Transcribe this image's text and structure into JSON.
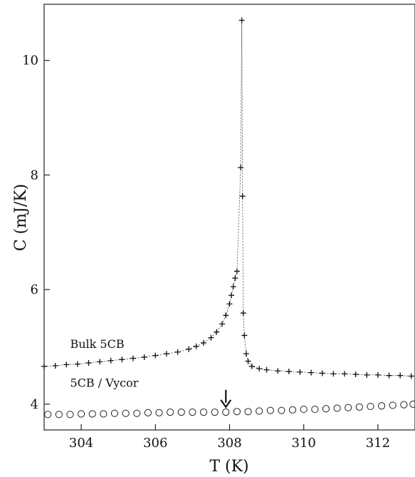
{
  "chart_data": {
    "type": "scatter",
    "xlabel": "T (K)",
    "ylabel": "C (mJ/K)",
    "xlim": [
      303.0,
      313.0
    ],
    "ylim": [
      3.55,
      10.98
    ],
    "x_ticks": [
      304,
      306,
      308,
      310,
      312
    ],
    "y_ticks": [
      4,
      6,
      8,
      10
    ],
    "grid": false,
    "legend": "none",
    "annotations": [
      {
        "text": "Bulk 5CB",
        "x": 303.7,
        "y": 4.98
      },
      {
        "text": "5CB / Vycor",
        "x": 303.7,
        "y": 4.3
      },
      {
        "type": "arrow",
        "x": 307.9,
        "y_from": 4.25,
        "y_to": 3.95
      }
    ],
    "series": [
      {
        "label": "Bulk 5CB",
        "marker": "plus",
        "dashed_guide": true,
        "points": [
          [
            303.0,
            4.66
          ],
          [
            303.3,
            4.67
          ],
          [
            303.6,
            4.69
          ],
          [
            303.9,
            4.7
          ],
          [
            304.2,
            4.72
          ],
          [
            304.5,
            4.74
          ],
          [
            304.8,
            4.76
          ],
          [
            305.1,
            4.78
          ],
          [
            305.4,
            4.8
          ],
          [
            305.7,
            4.82
          ],
          [
            306.0,
            4.85
          ],
          [
            306.3,
            4.88
          ],
          [
            306.6,
            4.91
          ],
          [
            306.9,
            4.96
          ],
          [
            307.1,
            5.01
          ],
          [
            307.3,
            5.07
          ],
          [
            307.5,
            5.16
          ],
          [
            307.65,
            5.26
          ],
          [
            307.8,
            5.4
          ],
          [
            307.9,
            5.55
          ],
          [
            308.0,
            5.75
          ],
          [
            308.05,
            5.9
          ],
          [
            308.1,
            6.05
          ],
          [
            308.15,
            6.2
          ],
          [
            308.2,
            6.32
          ],
          [
            308.3,
            8.13
          ],
          [
            308.33,
            10.7
          ],
          [
            308.35,
            7.63
          ],
          [
            308.37,
            5.59
          ],
          [
            308.4,
            5.2
          ],
          [
            308.45,
            4.88
          ],
          [
            308.5,
            4.75
          ],
          [
            308.6,
            4.66
          ],
          [
            308.8,
            4.62
          ],
          [
            309.0,
            4.6
          ],
          [
            309.3,
            4.58
          ],
          [
            309.6,
            4.57
          ],
          [
            309.9,
            4.56
          ],
          [
            310.2,
            4.55
          ],
          [
            310.5,
            4.54
          ],
          [
            310.8,
            4.53
          ],
          [
            311.1,
            4.53
          ],
          [
            311.4,
            4.52
          ],
          [
            311.7,
            4.51
          ],
          [
            312.0,
            4.51
          ],
          [
            312.3,
            4.5
          ],
          [
            312.6,
            4.5
          ],
          [
            312.9,
            4.49
          ]
        ]
      },
      {
        "label": "5CB / Vycor",
        "marker": "circle",
        "points": [
          [
            303.1,
            3.82
          ],
          [
            303.4,
            3.82
          ],
          [
            303.7,
            3.82
          ],
          [
            304.0,
            3.83
          ],
          [
            304.3,
            3.83
          ],
          [
            304.6,
            3.83
          ],
          [
            304.9,
            3.84
          ],
          [
            305.2,
            3.84
          ],
          [
            305.5,
            3.84
          ],
          [
            305.8,
            3.85
          ],
          [
            306.1,
            3.85
          ],
          [
            306.4,
            3.86
          ],
          [
            306.7,
            3.86
          ],
          [
            307.0,
            3.86
          ],
          [
            307.3,
            3.86
          ],
          [
            307.6,
            3.86
          ],
          [
            307.9,
            3.86
          ],
          [
            308.2,
            3.87
          ],
          [
            308.5,
            3.87
          ],
          [
            308.8,
            3.88
          ],
          [
            309.1,
            3.89
          ],
          [
            309.4,
            3.89
          ],
          [
            309.7,
            3.9
          ],
          [
            310.0,
            3.91
          ],
          [
            310.3,
            3.91
          ],
          [
            310.6,
            3.92
          ],
          [
            310.9,
            3.93
          ],
          [
            311.2,
            3.94
          ],
          [
            311.5,
            3.95
          ],
          [
            311.8,
            3.96
          ],
          [
            312.1,
            3.97
          ],
          [
            312.4,
            3.98
          ],
          [
            312.7,
            3.99
          ],
          [
            312.95,
            4.0
          ]
        ]
      }
    ]
  }
}
